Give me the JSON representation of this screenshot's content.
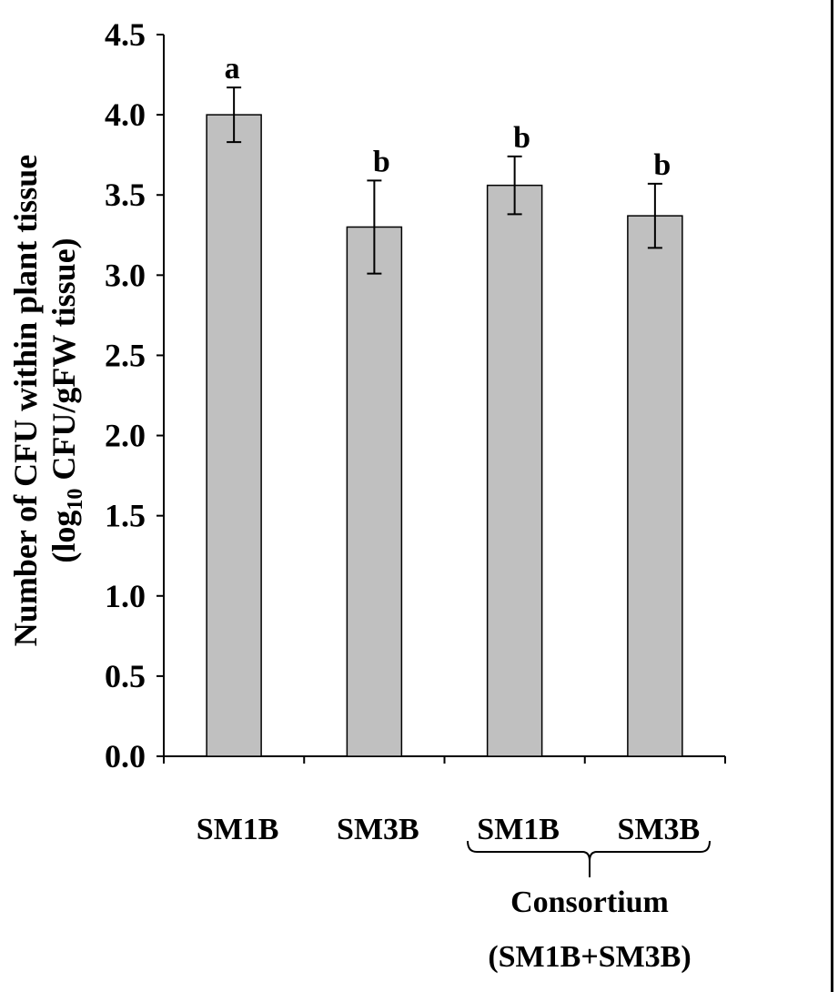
{
  "chart_data": {
    "type": "bar",
    "title": "",
    "ylabel_line1": "Number of CFU within plant tissue",
    "ylabel_line2_pre": "(log",
    "ylabel_line2_sub": "10",
    "ylabel_line2_post": " CFU/gFW tissue)",
    "xlabel": "",
    "ylim": [
      0,
      4.5
    ],
    "yticks": [
      "0.0",
      "0.5",
      "1.0",
      "1.5",
      "2.0",
      "2.5",
      "3.0",
      "3.5",
      "4.0",
      "4.5"
    ],
    "categories": [
      "SM1B",
      "SM3B",
      "SM1B",
      "SM3B"
    ],
    "values": [
      4.0,
      3.3,
      3.56,
      3.37
    ],
    "errors": [
      0.17,
      0.29,
      0.18,
      0.2
    ],
    "significance": [
      "a",
      "b",
      "b",
      "b"
    ],
    "bar_color": "#c0c0c0",
    "group_label_line1": "Consortium",
    "group_label_line2": "(SM1B+SM3B)",
    "grid": false,
    "legend": "none"
  }
}
